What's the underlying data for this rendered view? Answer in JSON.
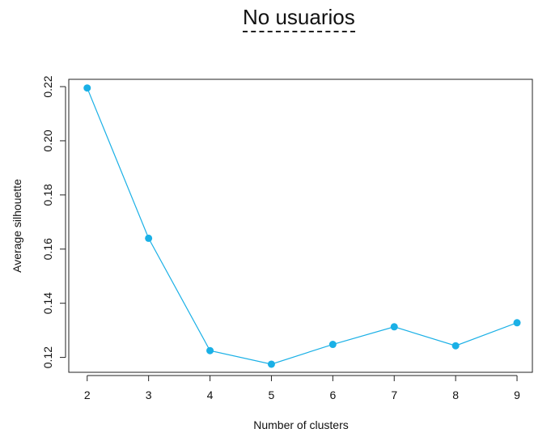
{
  "page_title": "No usuarios",
  "chart_data": {
    "type": "line",
    "x": [
      2,
      3,
      4,
      5,
      6,
      7,
      8,
      9
    ],
    "series": [
      {
        "values": [
          0.2195,
          0.164,
          0.1225,
          0.1175,
          0.1248,
          0.1313,
          0.1243,
          0.1328
        ],
        "color": "#1ab0e6"
      }
    ],
    "xlabel": "Number of clusters",
    "ylabel": "Average silhouette",
    "xticks": [
      2,
      3,
      4,
      5,
      6,
      7,
      8,
      9
    ],
    "yticks": [
      0.12,
      0.14,
      0.16,
      0.18,
      0.2,
      0.22
    ],
    "ytick_labels": [
      "0.12",
      "0.14",
      "0.16",
      "0.18",
      "0.20",
      "0.22"
    ],
    "xlim": [
      1.7,
      9.25
    ],
    "ylim": [
      0.1145,
      0.2227
    ],
    "grid": false,
    "markers": true
  }
}
